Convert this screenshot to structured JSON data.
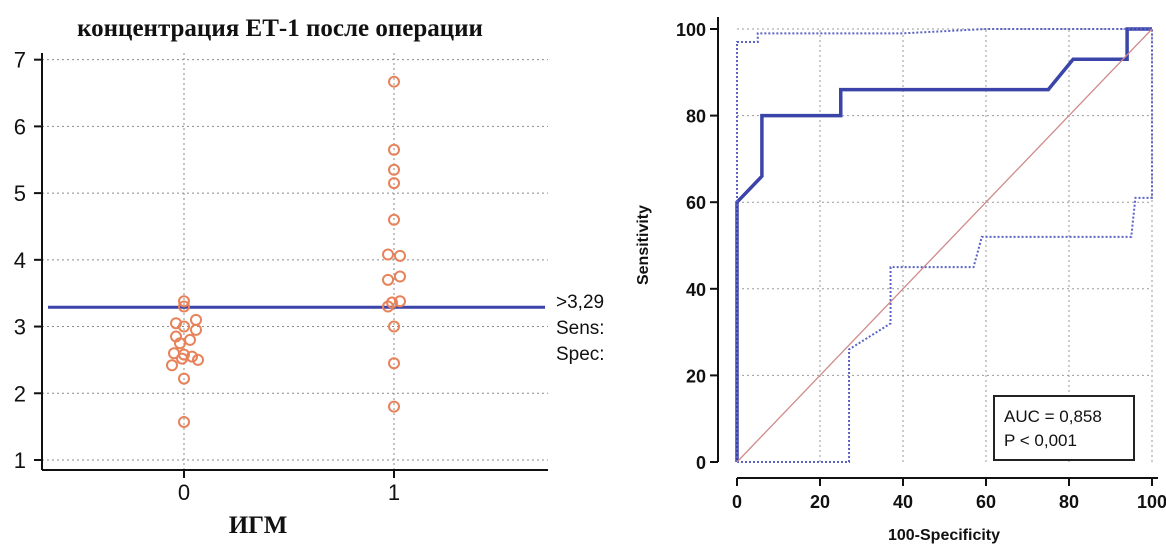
{
  "chart_data": [
    {
      "type": "scatter",
      "title": "концентрация ЕТ-1 после операции",
      "xlabel": "ИГМ",
      "ylabel": "",
      "categories": [
        "0",
        "1"
      ],
      "ylim": [
        0.85,
        7.1
      ],
      "yticks": [
        "1",
        "2",
        "3",
        "4",
        "5",
        "6",
        "7"
      ],
      "grid": "dotted",
      "points_color": "#e8825a",
      "cutoff_color": "#3b44a8",
      "series": [
        {
          "category": "0",
          "values": [
            3.38,
            3.3,
            3.1,
            3.05,
            3.0,
            2.95,
            2.85,
            2.8,
            2.75,
            2.6,
            2.58,
            2.55,
            2.52,
            2.5,
            2.42,
            2.22,
            1.57
          ]
        },
        {
          "category": "1",
          "values": [
            6.67,
            5.65,
            5.35,
            5.15,
            4.6,
            4.08,
            4.06,
            3.75,
            3.7,
            3.38,
            3.36,
            3.3,
            3.0,
            2.45,
            1.8
          ]
        }
      ],
      "cutoff": {
        "value": 3.29
      },
      "side_labels": [
        ">3,29",
        "Sens:",
        "Spec:"
      ]
    },
    {
      "type": "line",
      "title": "",
      "xlabel": "100-Specificity",
      "ylabel": "Sensitivity",
      "xlim": [
        0,
        100
      ],
      "ylim": [
        0,
        100
      ],
      "xticks": [
        "0",
        "20",
        "40",
        "60",
        "80",
        "100"
      ],
      "yticks": [
        "0",
        "20",
        "40",
        "60",
        "80",
        "100"
      ],
      "grid": "dotted",
      "series": [
        {
          "style": "solid-thick",
          "color": "#3b44a8",
          "points": [
            [
              0,
              0
            ],
            [
              0,
              60
            ],
            [
              2,
              62
            ],
            [
              6,
              66
            ],
            [
              6,
              80
            ],
            [
              25,
              80
            ],
            [
              25,
              86
            ],
            [
              75,
              86
            ],
            [
              81,
              93
            ],
            [
              94,
              93
            ],
            [
              94,
              100
            ],
            [
              100,
              100
            ]
          ]
        },
        {
          "style": "dotted",
          "color": "#5a62c4",
          "points": [
            [
              0,
              0
            ],
            [
              0,
              97
            ],
            [
              5,
              97
            ],
            [
              5,
              99
            ],
            [
              40,
              99
            ],
            [
              60,
              100
            ],
            [
              100,
              100
            ]
          ]
        },
        {
          "style": "dotted",
          "color": "#5a62c4",
          "points": [
            [
              0,
              0
            ],
            [
              27,
              0
            ],
            [
              27,
              26
            ],
            [
              37,
              32
            ],
            [
              37,
              45
            ],
            [
              57,
              45
            ],
            [
              59,
              52
            ],
            [
              95,
              52
            ],
            [
              96,
              61
            ],
            [
              100,
              61
            ],
            [
              100,
              100
            ]
          ]
        },
        {
          "style": "diagonal",
          "color": "#d08a8a",
          "points": [
            [
              0,
              0
            ],
            [
              100,
              100
            ]
          ]
        }
      ],
      "annotations": [
        "AUC = 0,858",
        "P < 0,001"
      ]
    }
  ]
}
